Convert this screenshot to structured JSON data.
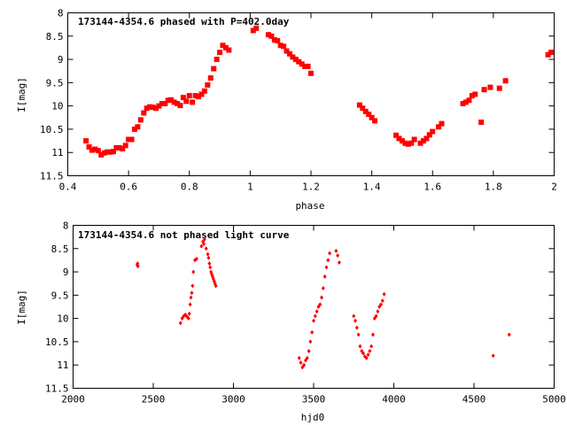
{
  "chart_data": [
    {
      "type": "scatter",
      "title": "173144-4354.6 phased with P=402.0day",
      "xlabel": "phase",
      "ylabel": "I[mag]",
      "xlim": [
        0.4,
        2.0
      ],
      "ylim": [
        11.5,
        8.0
      ],
      "y_inverted": true,
      "x_ticks": [
        "0.4",
        "0.6",
        "0.8",
        "1",
        "1.2",
        "1.4",
        "1.6",
        "1.8",
        "2"
      ],
      "y_ticks": [
        "8",
        "8.5",
        "9",
        "9.5",
        "10",
        "10.5",
        "11",
        "11.5"
      ],
      "grid": false,
      "marker_color": "#ff0000",
      "marker": "filled-square-large",
      "series": [
        {
          "x": [
            0.46,
            0.47,
            0.48,
            0.49,
            0.5,
            0.51,
            0.52,
            0.53,
            0.54,
            0.55,
            0.56,
            0.57,
            0.58,
            0.59,
            0.6,
            0.61,
            0.62,
            0.63,
            0.64,
            0.65,
            0.66,
            0.67,
            0.68,
            0.69,
            0.7,
            0.71,
            0.72,
            0.73,
            0.74,
            0.75,
            0.76,
            0.77,
            0.78,
            0.79,
            0.8,
            0.81,
            0.82,
            0.83,
            0.84,
            0.85,
            0.86,
            0.87,
            0.88,
            0.89,
            0.9,
            0.91,
            0.92,
            0.93,
            1.01,
            1.02,
            1.06,
            1.07,
            1.08,
            1.09,
            1.1,
            1.11,
            1.12,
            1.13,
            1.14,
            1.15,
            1.16,
            1.17,
            1.18,
            1.19,
            1.2,
            1.36,
            1.37,
            1.38,
            1.39,
            1.4,
            1.41,
            1.48,
            1.49,
            1.5,
            1.51,
            1.52,
            1.53,
            1.54,
            1.56,
            1.57,
            1.58,
            1.59,
            1.6,
            1.62,
            1.63,
            1.7,
            1.71,
            1.72,
            1.73,
            1.74,
            1.76,
            1.77,
            1.79,
            1.82,
            1.84,
            1.98,
            1.99
          ],
          "y": [
            10.75,
            10.88,
            10.95,
            10.93,
            10.96,
            11.05,
            11.01,
            10.99,
            10.99,
            10.98,
            10.9,
            10.9,
            10.92,
            10.85,
            10.72,
            10.72,
            10.5,
            10.45,
            10.3,
            10.15,
            10.05,
            10.02,
            10.03,
            10.05,
            10.0,
            9.95,
            9.95,
            9.88,
            9.87,
            9.92,
            9.95,
            9.99,
            9.82,
            9.9,
            9.78,
            9.92,
            9.78,
            9.8,
            9.75,
            9.68,
            9.55,
            9.4,
            9.2,
            9.0,
            8.85,
            8.7,
            8.75,
            8.8,
            8.38,
            8.33,
            8.47,
            8.5,
            8.58,
            8.6,
            8.7,
            8.72,
            8.82,
            8.88,
            8.95,
            9.0,
            9.05,
            9.1,
            9.15,
            9.15,
            9.3,
            9.98,
            10.05,
            10.12,
            10.18,
            10.25,
            10.32,
            10.63,
            10.7,
            10.75,
            10.8,
            10.82,
            10.8,
            10.72,
            10.8,
            10.75,
            10.7,
            10.62,
            10.55,
            10.45,
            10.38,
            9.95,
            9.92,
            9.88,
            9.78,
            9.75,
            10.35,
            9.65,
            9.6,
            9.62,
            9.46,
            8.9,
            8.85
          ]
        }
      ]
    },
    {
      "type": "scatter",
      "title": "173144-4354.6 not phased light curve",
      "xlabel": "hjd0",
      "ylabel": "I[mag]",
      "xlim": [
        2000,
        5000
      ],
      "ylim": [
        11.5,
        8.0
      ],
      "y_inverted": true,
      "x_ticks": [
        "2000",
        "2500",
        "3000",
        "3500",
        "4000",
        "4500",
        "5000"
      ],
      "y_ticks": [
        "8",
        "8.5",
        "9",
        "9.5",
        "10",
        "10.5",
        "11",
        "11.5"
      ],
      "grid": false,
      "marker_color": "#ff0000",
      "marker": "filled-diamond-small",
      "series": [
        {
          "x": [
            2400,
            2402,
            2404,
            2670,
            2680,
            2690,
            2700,
            2710,
            2720,
            2725,
            2730,
            2735,
            2740,
            2745,
            2750,
            2760,
            2770,
            2800,
            2810,
            2815,
            2820,
            2830,
            2840,
            2845,
            2850,
            2855,
            2860,
            2865,
            2870,
            2875,
            2880,
            2885,
            2890,
            3410,
            3420,
            3430,
            3440,
            3450,
            3460,
            3470,
            3480,
            3490,
            3500,
            3510,
            3520,
            3530,
            3540,
            3550,
            3560,
            3570,
            3580,
            3590,
            3600,
            3640,
            3650,
            3660,
            3750,
            3760,
            3770,
            3780,
            3790,
            3800,
            3810,
            3820,
            3830,
            3840,
            3850,
            3860,
            3870,
            3880,
            3890,
            3900,
            3910,
            3920,
            3930,
            3940,
            4620,
            4720
          ],
          "y": [
            8.85,
            8.82,
            8.88,
            10.1,
            10.0,
            9.95,
            9.92,
            9.96,
            10.0,
            9.9,
            9.7,
            9.55,
            9.45,
            9.3,
            9.0,
            8.75,
            8.72,
            8.45,
            8.35,
            8.4,
            8.3,
            8.5,
            8.62,
            8.7,
            8.82,
            8.9,
            9.0,
            9.05,
            9.1,
            9.15,
            9.2,
            9.25,
            9.3,
            10.85,
            10.95,
            11.05,
            11.0,
            10.9,
            10.85,
            10.7,
            10.5,
            10.3,
            10.05,
            9.95,
            9.85,
            9.75,
            9.7,
            9.55,
            9.35,
            9.1,
            8.9,
            8.75,
            8.6,
            8.55,
            8.65,
            8.8,
            9.95,
            10.05,
            10.2,
            10.35,
            10.6,
            10.7,
            10.75,
            10.82,
            10.85,
            10.78,
            10.7,
            10.6,
            10.35,
            10.0,
            9.95,
            9.85,
            9.75,
            9.7,
            9.62,
            9.48,
            10.8,
            10.35
          ]
        }
      ]
    }
  ]
}
